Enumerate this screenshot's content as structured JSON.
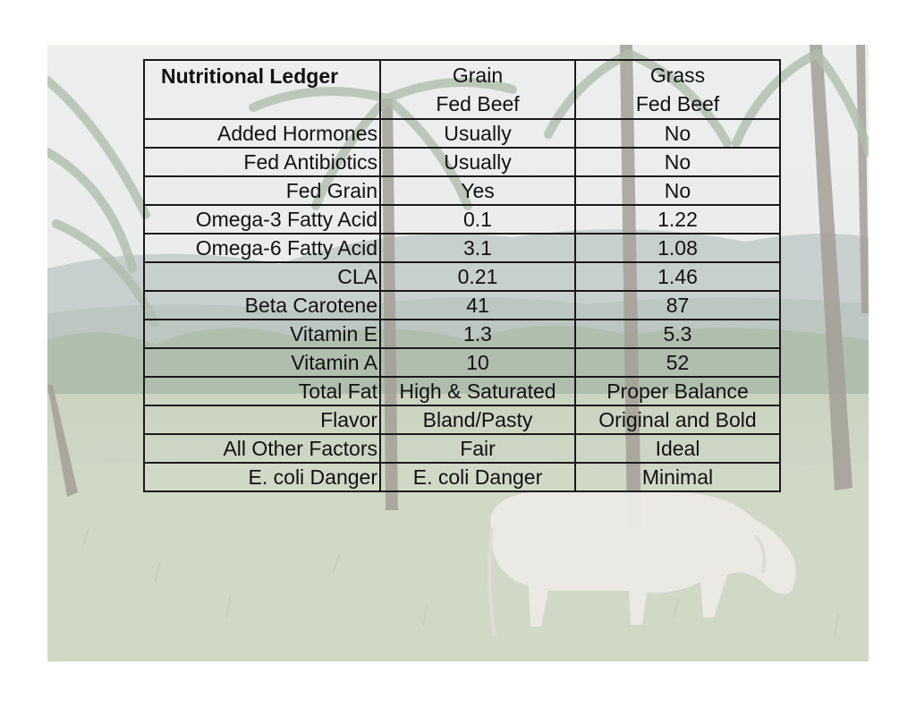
{
  "table": {
    "corner_label": "Nutritional Ledger",
    "columns": [
      {
        "line1": "Grain",
        "line2": "Fed Beef"
      },
      {
        "line1": "Grass",
        "line2": "Fed Beef"
      }
    ],
    "rows": [
      {
        "label": "Added Hormones",
        "grain": "Usually",
        "grass": "No"
      },
      {
        "label": "Fed Antibiotics",
        "grain": "Usually",
        "grass": "No"
      },
      {
        "label": "Fed Grain",
        "grain": "Yes",
        "grass": "No"
      },
      {
        "label": "Omega-3 Fatty Acid",
        "grain": "0.1",
        "grass": "1.22"
      },
      {
        "label": "Omega-6 Fatty Acid",
        "grain": "3.1",
        "grass": "1.08"
      },
      {
        "label": "CLA",
        "grain": "0.21",
        "grass": "1.46"
      },
      {
        "label": "Beta Carotene",
        "grain": "41",
        "grass": "87"
      },
      {
        "label": "Vitamin E",
        "grain": "1.3",
        "grass": "5.3"
      },
      {
        "label": "Vitamin A",
        "grain": "10",
        "grass": "52"
      },
      {
        "label": "Total Fat",
        "grain": "High & Saturated",
        "grass": "Proper Balance"
      },
      {
        "label": "Flavor",
        "grain": "Bland/Pasty",
        "grass": "Original and Bold"
      },
      {
        "label": "All Other Factors",
        "grain": "Fair",
        "grass": "Ideal"
      },
      {
        "label": "E. coli Danger",
        "grain": "E. coli Danger",
        "grass": "Minimal"
      }
    ]
  },
  "background": {
    "scene": "pasture-with-palms-and-grazing-cow",
    "colors": {
      "sky": "#e4e8e6",
      "hills": "#b7c2c2",
      "foliage": "#a7b7a2",
      "grass": "#c9d3bd",
      "trunk": "#8e8a7e",
      "cow": "#e6e4de"
    }
  }
}
